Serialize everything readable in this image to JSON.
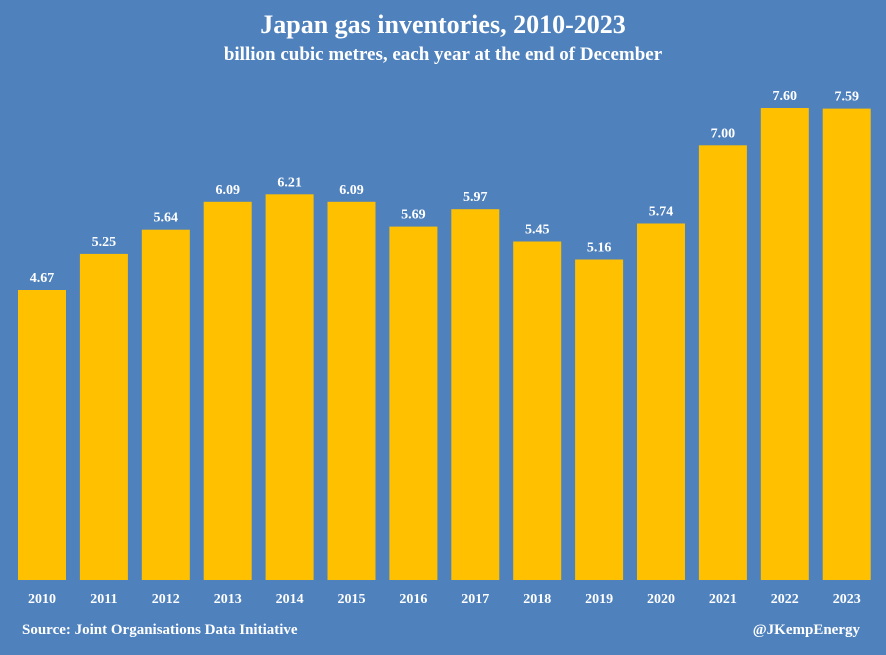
{
  "chart_data": {
    "type": "bar",
    "title": "Japan gas inventories, 2010-2023",
    "subtitle": "billion cubic metres, each year at the end of December",
    "categories": [
      "2010",
      "2011",
      "2012",
      "2013",
      "2014",
      "2015",
      "2016",
      "2017",
      "2018",
      "2019",
      "2020",
      "2021",
      "2022",
      "2023"
    ],
    "values": [
      4.67,
      5.25,
      5.64,
      6.09,
      6.21,
      6.09,
      5.69,
      5.97,
      5.45,
      5.16,
      5.74,
      7.0,
      7.6,
      7.59
    ],
    "value_labels": [
      "4.67",
      "5.25",
      "5.64",
      "6.09",
      "6.21",
      "6.09",
      "5.69",
      "5.97",
      "5.45",
      "5.16",
      "5.74",
      "7.00",
      "7.60",
      "7.59"
    ],
    "ylim": [
      0,
      7.6
    ],
    "grid": false,
    "legend": "none",
    "bar_color": "#ffc000",
    "background_color": "#4f81bd",
    "text_color": "#ffffff"
  },
  "footer": {
    "source": "Source: Joint Organisations Data Initiative",
    "credit": "@JKempEnergy"
  }
}
